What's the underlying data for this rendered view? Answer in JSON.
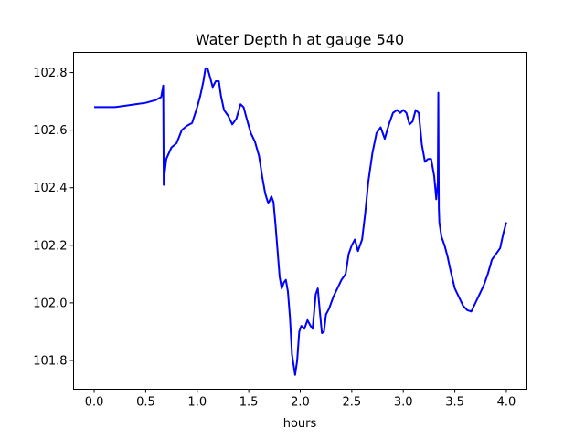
{
  "chart_data": {
    "type": "line",
    "title": "Water Depth h at gauge 540",
    "xlabel": "hours",
    "ylabel": "",
    "xlim": [
      -0.2,
      4.2
    ],
    "ylim": [
      101.7,
      102.87
    ],
    "grid": false,
    "xticks": [
      0.0,
      0.5,
      1.0,
      1.5,
      2.0,
      2.5,
      3.0,
      3.5,
      4.0
    ],
    "xtick_labels": [
      "0.0",
      "0.5",
      "1.0",
      "1.5",
      "2.0",
      "2.5",
      "3.0",
      "3.5",
      "4.0"
    ],
    "yticks": [
      101.8,
      102.0,
      102.2,
      102.4,
      102.6,
      102.8
    ],
    "ytick_labels": [
      "101.8",
      "102.0",
      "102.2",
      "102.4",
      "102.6",
      "102.8"
    ],
    "series": [
      {
        "color": "#0000ff",
        "x": [
          0.0,
          0.2,
          0.3,
          0.4,
          0.5,
          0.6,
          0.65,
          0.67,
          0.675,
          0.68,
          0.7,
          0.75,
          0.8,
          0.85,
          0.9,
          0.95,
          1.0,
          1.03,
          1.06,
          1.08,
          1.1,
          1.12,
          1.15,
          1.18,
          1.21,
          1.23,
          1.26,
          1.3,
          1.34,
          1.38,
          1.42,
          1.45,
          1.48,
          1.52,
          1.56,
          1.6,
          1.63,
          1.66,
          1.69,
          1.72,
          1.74,
          1.76,
          1.78,
          1.8,
          1.82,
          1.84,
          1.86,
          1.88,
          1.9,
          1.92,
          1.95,
          1.97,
          1.99,
          2.01,
          2.04,
          2.07,
          2.1,
          2.12,
          2.15,
          2.17,
          2.19,
          2.21,
          2.23,
          2.25,
          2.28,
          2.32,
          2.36,
          2.4,
          2.44,
          2.47,
          2.5,
          2.53,
          2.56,
          2.6,
          2.63,
          2.66,
          2.7,
          2.74,
          2.78,
          2.82,
          2.86,
          2.9,
          2.94,
          2.97,
          3.0,
          3.03,
          3.06,
          3.09,
          3.12,
          3.15,
          3.18,
          3.21,
          3.24,
          3.27,
          3.3,
          3.32,
          3.335,
          3.34,
          3.345,
          3.35,
          3.37,
          3.4,
          3.43,
          3.46,
          3.5,
          3.54,
          3.58,
          3.62,
          3.66,
          3.7,
          3.74,
          3.78,
          3.82,
          3.86,
          3.9,
          3.94,
          3.97,
          4.0
        ],
        "y": [
          102.68,
          102.68,
          102.685,
          102.69,
          102.695,
          102.705,
          102.715,
          102.755,
          102.41,
          102.44,
          102.5,
          102.54,
          102.555,
          102.6,
          102.615,
          102.625,
          102.68,
          102.72,
          102.77,
          102.815,
          102.815,
          102.79,
          102.75,
          102.77,
          102.77,
          102.72,
          102.67,
          102.65,
          102.62,
          102.64,
          102.69,
          102.68,
          102.64,
          102.59,
          102.56,
          102.51,
          102.44,
          102.38,
          102.345,
          102.37,
          102.35,
          102.27,
          102.18,
          102.09,
          102.05,
          102.07,
          102.08,
          102.04,
          101.95,
          101.82,
          101.75,
          101.8,
          101.9,
          101.92,
          101.91,
          101.94,
          101.92,
          101.91,
          102.03,
          102.05,
          101.97,
          101.895,
          101.9,
          101.96,
          101.98,
          102.02,
          102.05,
          102.08,
          102.1,
          102.17,
          102.2,
          102.22,
          102.18,
          102.22,
          102.31,
          102.42,
          102.52,
          102.59,
          102.61,
          102.57,
          102.62,
          102.66,
          102.67,
          102.66,
          102.67,
          102.66,
          102.62,
          102.63,
          102.67,
          102.66,
          102.55,
          102.49,
          102.5,
          102.5,
          102.44,
          102.36,
          102.42,
          102.73,
          102.33,
          102.28,
          102.23,
          102.2,
          102.16,
          102.11,
          102.05,
          102.02,
          101.99,
          101.975,
          101.97,
          102.0,
          102.03,
          102.06,
          102.1,
          102.15,
          102.17,
          102.19,
          102.24,
          102.28
        ]
      }
    ]
  }
}
